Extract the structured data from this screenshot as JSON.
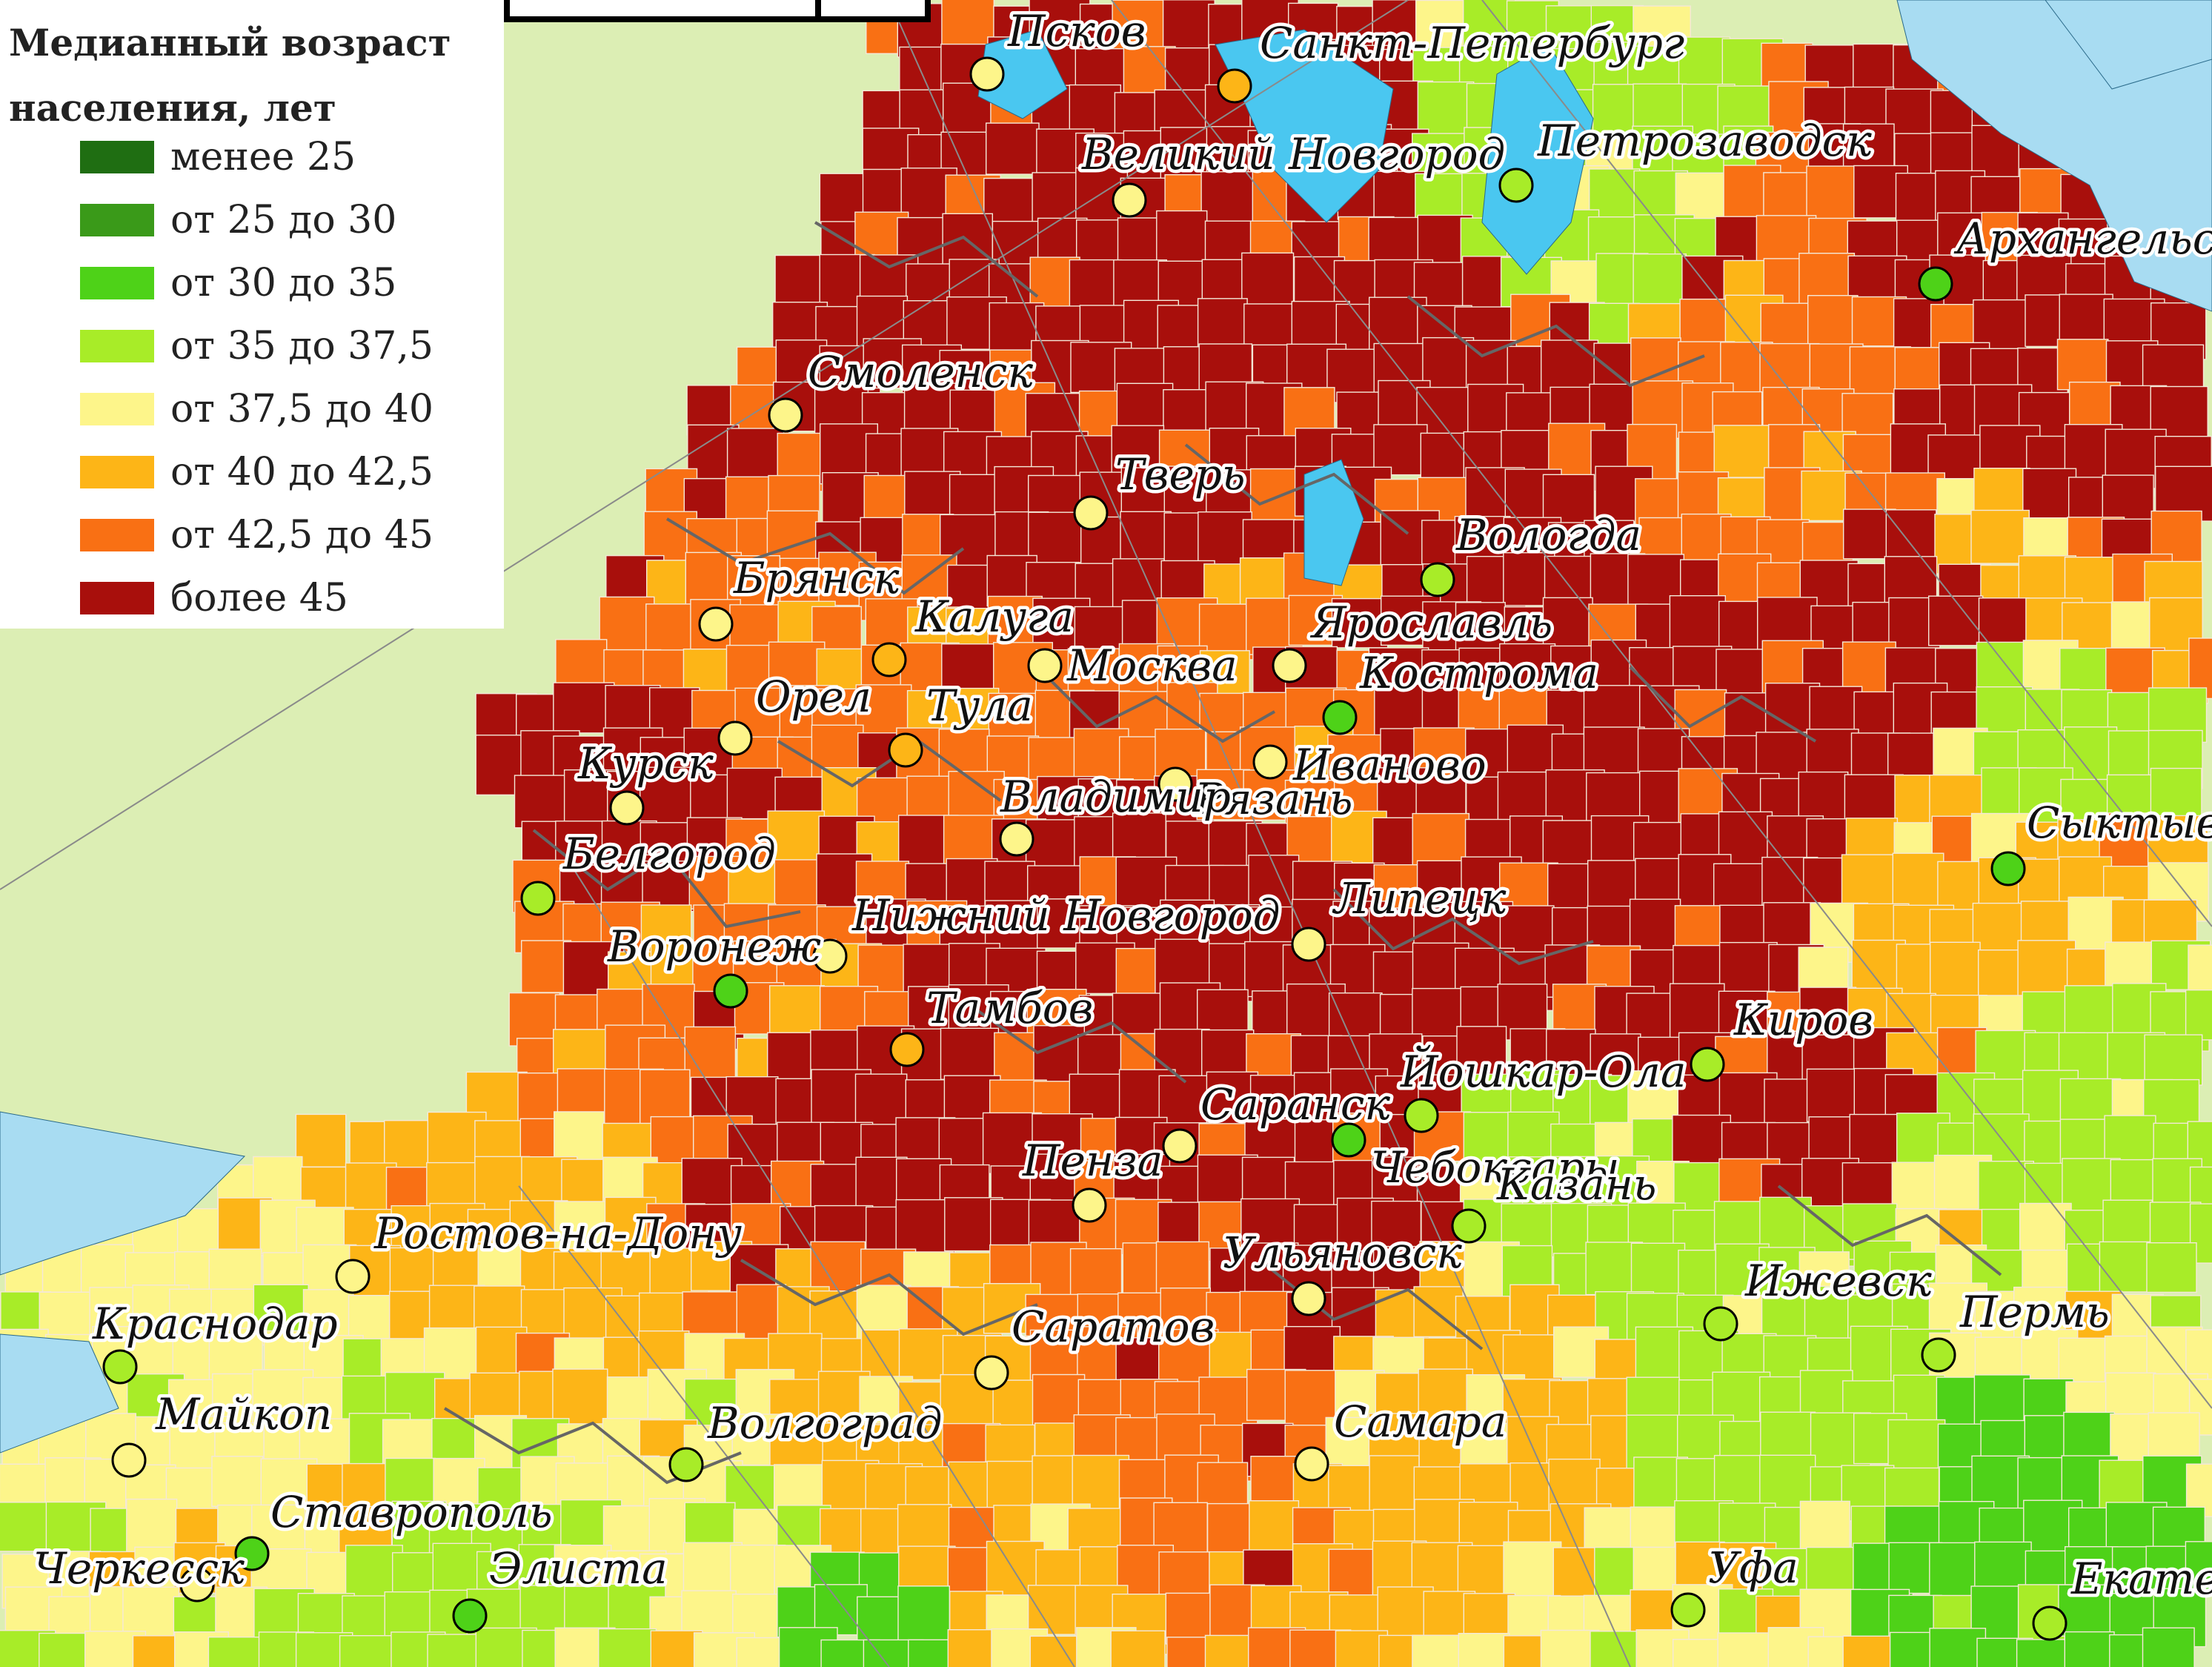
{
  "legend": {
    "title": "Медианный возраст населения, лет",
    "items": [
      {
        "label": "менее 25",
        "color": "#1f6e12"
      },
      {
        "label": "от 25 до 30",
        "color": "#3a9a19"
      },
      {
        "label": "от 30 до 35",
        "color": "#4ed218"
      },
      {
        "label": "от 35 до 37,5",
        "color": "#a8ec28"
      },
      {
        "label": "от 37,5 до 40",
        "color": "#fdf58a"
      },
      {
        "label": "от 40 до 42,5",
        "color": "#fdb517"
      },
      {
        "label": "от 42,5 до 45",
        "color": "#f97014"
      },
      {
        "label": "более 45",
        "color": "#a80f0c"
      }
    ]
  },
  "colors": {
    "background": "#dceeb4",
    "water": "#a8dcf2",
    "lake": "#4ac7f0",
    "border_region": "#666666",
    "border_district": "#f4e8d8",
    "city_marker_stroke": "#000000"
  },
  "cities": [
    {
      "name": "Псков",
      "category": 4
    },
    {
      "name": "Санкт-Петербург",
      "category": 5
    },
    {
      "name": "Великий Новгород",
      "category": 4
    },
    {
      "name": "Петрозаводск",
      "category": 3
    },
    {
      "name": "Архангельск",
      "category": 2
    },
    {
      "name": "Смоленск",
      "category": 4
    },
    {
      "name": "Тверь",
      "category": 4
    },
    {
      "name": "Вологда",
      "category": 3
    },
    {
      "name": "Брянск",
      "category": 4
    },
    {
      "name": "Калуга",
      "category": 5
    },
    {
      "name": "Москва",
      "category": 4
    },
    {
      "name": "Ярославль",
      "category": 4
    },
    {
      "name": "Кострома",
      "category": 2
    },
    {
      "name": "Орел",
      "category": 4
    },
    {
      "name": "Тула",
      "category": 5
    },
    {
      "name": "Иваново",
      "category": 4
    },
    {
      "name": "Курск",
      "category": 4
    },
    {
      "name": "Рязань",
      "category": 4
    },
    {
      "name": "Владимир",
      "category": 4
    },
    {
      "name": "Сыктывкар",
      "category": 2
    },
    {
      "name": "Белгород",
      "category": 3
    },
    {
      "name": "Липецк",
      "category": 4
    },
    {
      "name": "Нижний Новгород",
      "category": 4
    },
    {
      "name": "Воронеж",
      "category": 2
    },
    {
      "name": "Тамбов",
      "category": 5
    },
    {
      "name": "Киров",
      "category": 3
    },
    {
      "name": "Йошкар-Ола",
      "category": 3
    },
    {
      "name": "Саранск",
      "category": 4
    },
    {
      "name": "Чебоксары",
      "category": 2
    },
    {
      "name": "Пенза",
      "category": 4
    },
    {
      "name": "Казань",
      "category": 3
    },
    {
      "name": "Ростов-на-Дону",
      "category": 4
    },
    {
      "name": "Ульяновск",
      "category": 4
    },
    {
      "name": "Ижевск",
      "category": 3
    },
    {
      "name": "Краснодар",
      "category": 3
    },
    {
      "name": "Саратов",
      "category": 4
    },
    {
      "name": "Пермь",
      "category": 3
    },
    {
      "name": "Майкоп",
      "category": 4
    },
    {
      "name": "Волгоград",
      "category": 3
    },
    {
      "name": "Самара",
      "category": 4
    },
    {
      "name": "Ставрополь",
      "category": 2
    },
    {
      "name": "Черкесск",
      "category": 4
    },
    {
      "name": "Элиста",
      "category": 2
    },
    {
      "name": "Уфа",
      "category": 3
    },
    {
      "name": "Екатеринбург",
      "category": 3
    }
  ]
}
